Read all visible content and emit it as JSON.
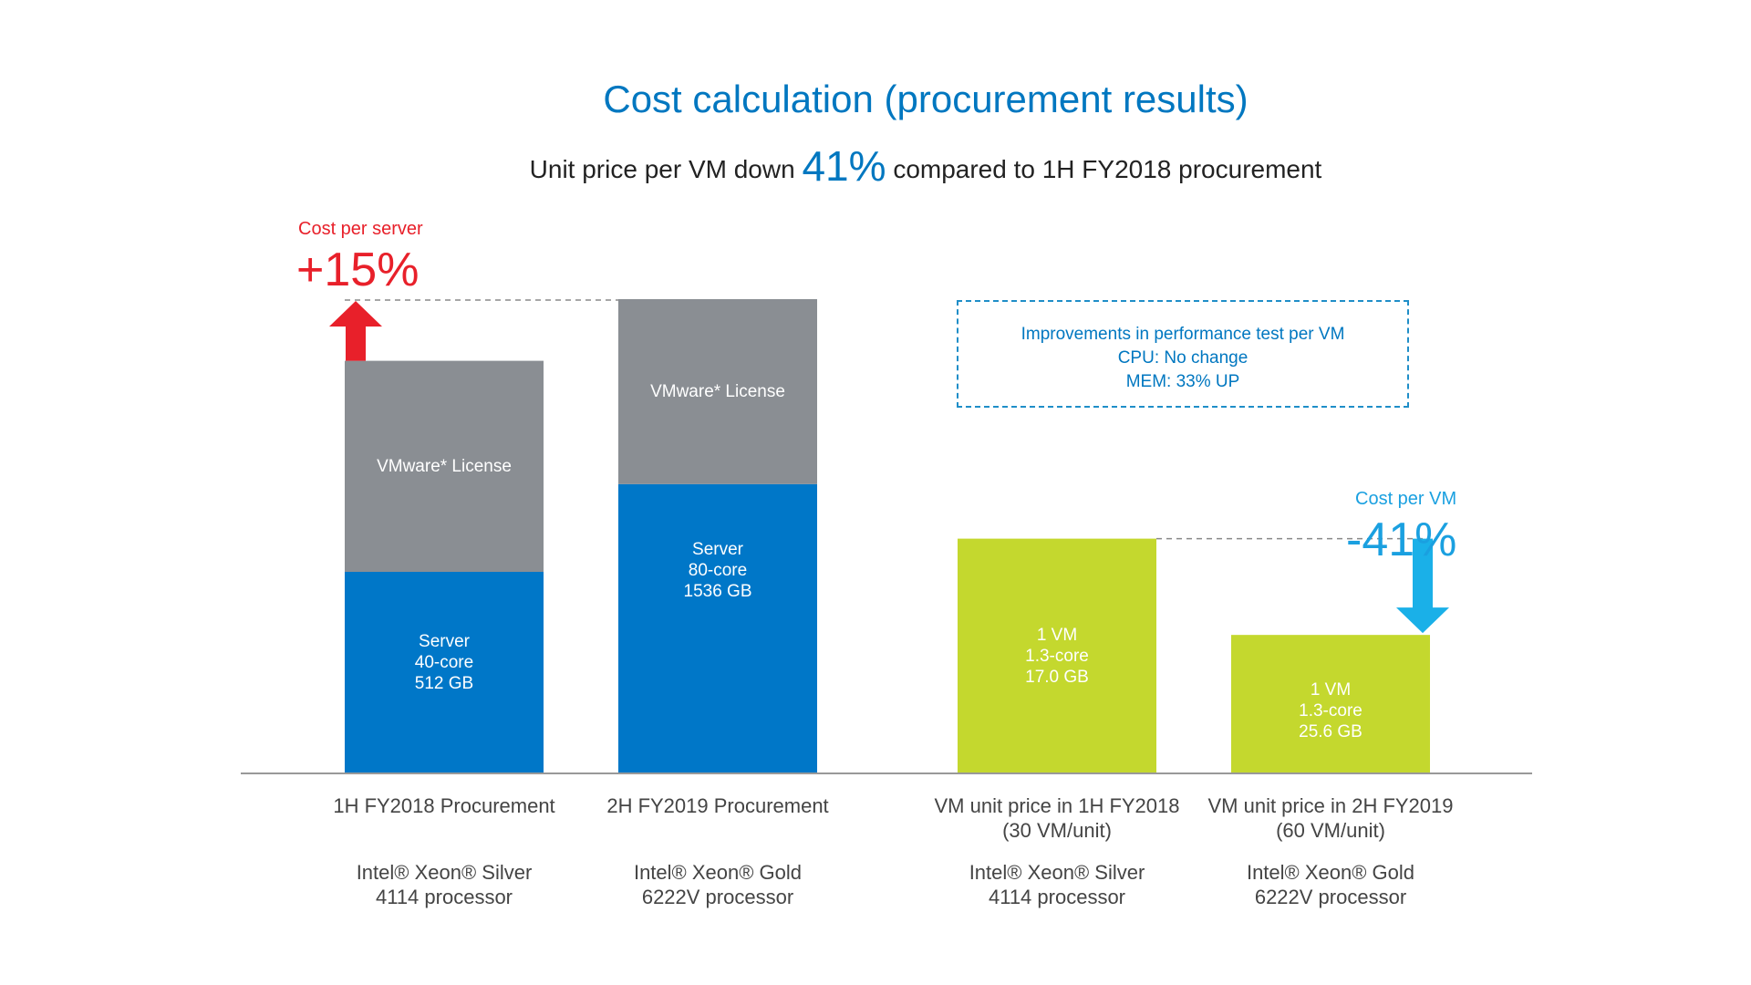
{
  "header": {
    "title": "Cost calculation (procurement results)",
    "subtitle_pre": "Unit price per VM down",
    "subtitle_big": "41%",
    "subtitle_post": "compared to 1H FY2018 procurement"
  },
  "annotations": {
    "server_label": "Cost per server",
    "server_value": "+15%",
    "vm_label": "Cost per VM",
    "vm_value": "-41%",
    "note_lines": [
      "Improvements in performance test per VM",
      "CPU: No change",
      "MEM: 33% UP"
    ]
  },
  "colors": {
    "server": "#0077c8",
    "license": "#8a8e93",
    "vm": "#c4d82e",
    "up_arrow": "#e8202a",
    "down_arrow": "#1ab0e8",
    "axis": "#999999"
  },
  "chart_data": {
    "type": "bar",
    "title": "Cost calculation (procurement results)",
    "ylim": [
      0,
      100
    ],
    "grid": false,
    "bars": [
      {
        "category": "1H FY2018 Procurement",
        "processor": [
          "Intel® Xeon® Silver",
          "4114 processor"
        ],
        "segments": [
          {
            "name": "Server",
            "value": 42.5,
            "label": [
              "Server",
              "40-core",
              "512 GB"
            ]
          },
          {
            "name": "VMware* License",
            "value": 44.5,
            "label": [
              "VMware* License"
            ]
          }
        ]
      },
      {
        "category": "2H FY2019 Procurement",
        "processor": [
          "Intel® Xeon® Gold",
          "6222V processor"
        ],
        "segments": [
          {
            "name": "Server",
            "value": 61,
            "label": [
              "Server",
              "80-core",
              "1536 GB"
            ]
          },
          {
            "name": "VMware* License",
            "value": 39,
            "label": [
              "VMware* License"
            ]
          }
        ]
      },
      {
        "category": [
          "VM unit price in 1H FY2018",
          "(30 VM/unit)"
        ],
        "processor": [
          "Intel® Xeon® Silver",
          "4114 processor"
        ],
        "segments": [
          {
            "name": "VM",
            "value": 49.5,
            "label": [
              "1 VM",
              "1.3-core",
              "17.0 GB"
            ]
          }
        ]
      },
      {
        "category": [
          "VM unit price in 2H FY2019",
          "(60 VM/unit)"
        ],
        "processor": [
          "Intel® Xeon® Gold",
          "6222V processor"
        ],
        "segments": [
          {
            "name": "VM",
            "value": 29.2,
            "label": [
              "1 VM",
              "1.3-core",
              "25.6 GB"
            ]
          }
        ]
      }
    ]
  }
}
